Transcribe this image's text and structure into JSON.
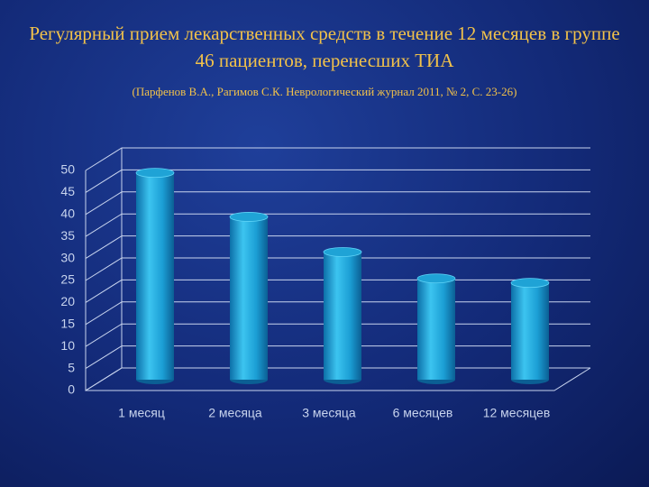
{
  "chart_data": {
    "type": "bar",
    "title": "Регулярный прием лекарственных средств в течение 12 месяцев в группе  46 пациентов, перенесших ТИА",
    "subtitle": "(Парфенов В.А., Рагимов С.К. Неврологический журнал 2011, № 2, С. 23-26)",
    "categories": [
      "1 месяц",
      "2 месяца",
      "3 месяца",
      "6 месяцев",
      "12 месяцев"
    ],
    "values": [
      47,
      37,
      29,
      23,
      22
    ],
    "color": "#1fa3d6",
    "ylim": [
      0,
      50
    ],
    "yticks": [
      0,
      5,
      10,
      15,
      20,
      25,
      30,
      35,
      40,
      45,
      50
    ],
    "grid": true
  }
}
